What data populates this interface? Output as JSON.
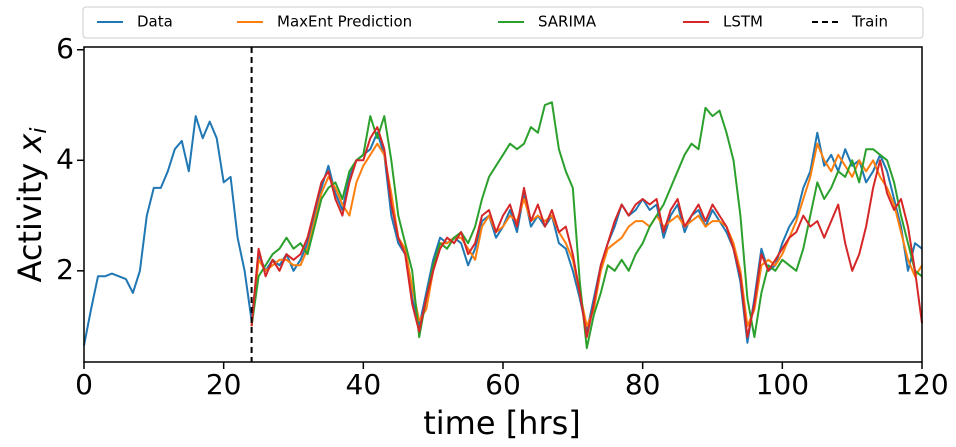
{
  "chart_data": {
    "type": "line",
    "xlabel": "time [hrs]",
    "ylabel": "Activity",
    "ylabel_var": "x",
    "ylabel_sub": "i",
    "x": [
      0,
      1,
      2,
      3,
      4,
      5,
      6,
      7,
      8,
      9,
      10,
      11,
      12,
      13,
      14,
      15,
      16,
      17,
      18,
      19,
      20,
      21,
      22,
      23,
      24,
      25,
      26,
      27,
      28,
      29,
      30,
      31,
      32,
      33,
      34,
      35,
      36,
      37,
      38,
      39,
      40,
      41,
      42,
      43,
      44,
      45,
      46,
      47,
      48,
      49,
      50,
      51,
      52,
      53,
      54,
      55,
      56,
      57,
      58,
      59,
      60,
      61,
      62,
      63,
      64,
      65,
      66,
      67,
      68,
      69,
      70,
      71,
      72,
      73,
      74,
      75,
      76,
      77,
      78,
      79,
      80,
      81,
      82,
      83,
      84,
      85,
      86,
      87,
      88,
      89,
      90,
      91,
      92,
      93,
      94,
      95,
      96,
      97,
      98,
      99,
      100,
      101,
      102,
      103,
      104,
      105,
      106,
      107,
      108,
      109,
      110,
      111,
      112,
      113,
      114,
      115,
      116,
      117,
      118,
      119,
      120
    ],
    "series": [
      {
        "name": "Data",
        "color": "#1f77b4",
        "values": [
          0.65,
          1.3,
          1.9,
          1.9,
          1.95,
          1.9,
          1.85,
          1.6,
          2.0,
          3.0,
          3.5,
          3.5,
          3.8,
          4.2,
          4.35,
          3.8,
          4.8,
          4.4,
          4.7,
          4.4,
          3.6,
          3.7,
          2.6,
          2.0,
          1.1,
          2.3,
          2.0,
          2.2,
          2.1,
          2.3,
          2.0,
          2.2,
          2.5,
          3.0,
          3.5,
          3.9,
          3.4,
          3.1,
          3.7,
          4.0,
          4.1,
          4.2,
          4.5,
          4.1,
          3.0,
          2.5,
          2.3,
          1.5,
          1.0,
          1.6,
          2.2,
          2.6,
          2.5,
          2.6,
          2.5,
          2.1,
          2.4,
          2.9,
          3.0,
          2.6,
          2.8,
          3.1,
          2.7,
          3.4,
          2.8,
          3.0,
          2.8,
          3.0,
          2.5,
          2.4,
          2.0,
          1.5,
          0.9,
          1.5,
          2.1,
          2.5,
          2.8,
          3.2,
          3.0,
          3.1,
          3.3,
          3.1,
          3.2,
          2.6,
          3.0,
          3.2,
          2.7,
          3.0,
          3.1,
          2.8,
          3.1,
          2.9,
          2.7,
          2.4,
          1.8,
          0.7,
          1.5,
          2.4,
          2.0,
          2.1,
          2.5,
          2.8,
          3.0,
          3.5,
          3.8,
          4.5,
          3.9,
          4.1,
          3.8,
          4.2,
          3.9,
          4.0,
          3.6,
          3.8,
          4.1,
          3.8,
          3.3,
          2.8,
          2.0,
          2.5,
          2.4
        ]
      },
      {
        "name": "MaxEnt Prediction",
        "color": "#ff7f0e",
        "values": [
          null,
          null,
          null,
          null,
          null,
          null,
          null,
          null,
          null,
          null,
          null,
          null,
          null,
          null,
          null,
          null,
          null,
          null,
          null,
          null,
          null,
          null,
          null,
          null,
          1.0,
          2.2,
          2.0,
          2.1,
          2.2,
          2.2,
          2.1,
          2.1,
          2.4,
          2.9,
          3.4,
          3.7,
          3.5,
          3.2,
          3.0,
          3.6,
          3.9,
          4.1,
          4.3,
          4.1,
          3.4,
          2.6,
          2.4,
          1.7,
          1.1,
          1.3,
          2.0,
          2.5,
          2.5,
          2.6,
          2.6,
          2.4,
          2.2,
          2.8,
          3.0,
          2.7,
          2.8,
          3.0,
          2.9,
          3.3,
          2.9,
          3.0,
          2.9,
          3.0,
          2.7,
          2.5,
          2.2,
          1.6,
          1.0,
          1.3,
          2.0,
          2.4,
          2.5,
          2.6,
          2.8,
          2.9,
          2.9,
          2.8,
          3.0,
          2.8,
          2.9,
          3.0,
          2.8,
          2.9,
          3.0,
          2.8,
          2.9,
          2.9,
          2.8,
          2.5,
          2.0,
          1.0,
          1.3,
          2.1,
          2.2,
          2.1,
          2.3,
          2.6,
          2.9,
          3.3,
          3.7,
          4.3,
          4.0,
          3.8,
          4.1,
          3.9,
          3.7,
          4.0,
          3.8,
          4.0,
          3.7,
          3.5,
          3.2,
          2.7,
          2.2,
          1.9,
          2.1
        ]
      },
      {
        "name": "SARIMA",
        "color": "#2ca02c",
        "values": [
          null,
          null,
          null,
          null,
          null,
          null,
          null,
          null,
          null,
          null,
          null,
          null,
          null,
          null,
          null,
          null,
          null,
          null,
          null,
          null,
          null,
          null,
          null,
          null,
          1.0,
          1.9,
          2.1,
          2.3,
          2.4,
          2.6,
          2.4,
          2.5,
          2.3,
          2.8,
          3.3,
          3.5,
          3.6,
          3.3,
          3.8,
          4.0,
          4.1,
          4.8,
          4.4,
          4.8,
          4.0,
          3.0,
          2.5,
          2.0,
          0.8,
          1.5,
          2.1,
          2.5,
          2.4,
          2.6,
          2.7,
          2.5,
          2.8,
          3.3,
          3.7,
          3.9,
          4.1,
          4.3,
          4.2,
          4.3,
          4.6,
          4.5,
          5.0,
          5.05,
          4.2,
          3.8,
          3.5,
          1.8,
          0.6,
          1.2,
          1.6,
          2.1,
          2.0,
          2.2,
          2.0,
          2.3,
          2.5,
          2.8,
          3.0,
          3.2,
          3.5,
          3.8,
          4.1,
          4.3,
          4.2,
          4.95,
          4.8,
          4.9,
          4.5,
          4.0,
          3.0,
          1.5,
          0.8,
          1.6,
          2.1,
          2.0,
          2.2,
          2.1,
          2.0,
          2.4,
          3.0,
          3.6,
          3.3,
          3.5,
          3.8,
          3.7,
          4.0,
          3.6,
          4.2,
          4.2,
          4.1,
          4.0,
          3.6,
          3.0,
          2.5,
          2.0,
          1.9
        ]
      },
      {
        "name": "LSTM",
        "color": "#d62728",
        "values": [
          null,
          null,
          null,
          null,
          null,
          null,
          null,
          null,
          null,
          null,
          null,
          null,
          null,
          null,
          null,
          null,
          null,
          null,
          null,
          null,
          null,
          null,
          null,
          null,
          1.0,
          2.4,
          1.9,
          2.2,
          2.0,
          2.3,
          2.2,
          2.3,
          2.6,
          3.1,
          3.6,
          3.8,
          3.3,
          3.0,
          3.6,
          4.0,
          4.0,
          4.4,
          4.6,
          4.2,
          3.2,
          2.6,
          2.3,
          1.4,
          0.9,
          1.5,
          2.0,
          2.4,
          2.6,
          2.5,
          2.7,
          2.3,
          2.5,
          3.0,
          3.1,
          2.7,
          3.0,
          3.2,
          2.8,
          3.5,
          2.9,
          3.2,
          2.8,
          3.1,
          2.7,
          2.8,
          2.3,
          1.6,
          0.8,
          1.4,
          2.1,
          2.5,
          2.9,
          3.2,
          3.0,
          3.2,
          3.3,
          3.2,
          3.3,
          2.7,
          3.1,
          3.3,
          2.8,
          3.0,
          3.2,
          2.9,
          3.2,
          3.0,
          2.8,
          2.4,
          1.9,
          0.8,
          1.4,
          2.3,
          2.0,
          2.2,
          2.4,
          2.6,
          2.7,
          3.0,
          2.8,
          2.9,
          2.6,
          2.9,
          3.2,
          2.5,
          2.0,
          2.3,
          2.8,
          3.5,
          4.0,
          3.4,
          3.1,
          3.3,
          2.8,
          2.0,
          1.05
        ]
      }
    ],
    "vline": {
      "x": 24,
      "label": "Train",
      "color": "#000000",
      "dashed": true
    },
    "xlim": [
      0,
      120
    ],
    "xticks": [
      0,
      20,
      40,
      60,
      80,
      100,
      120
    ],
    "ylim": [
      0.35,
      6.05
    ],
    "yticks": [
      2,
      4,
      6
    ],
    "grid": false,
    "legend": "top"
  }
}
